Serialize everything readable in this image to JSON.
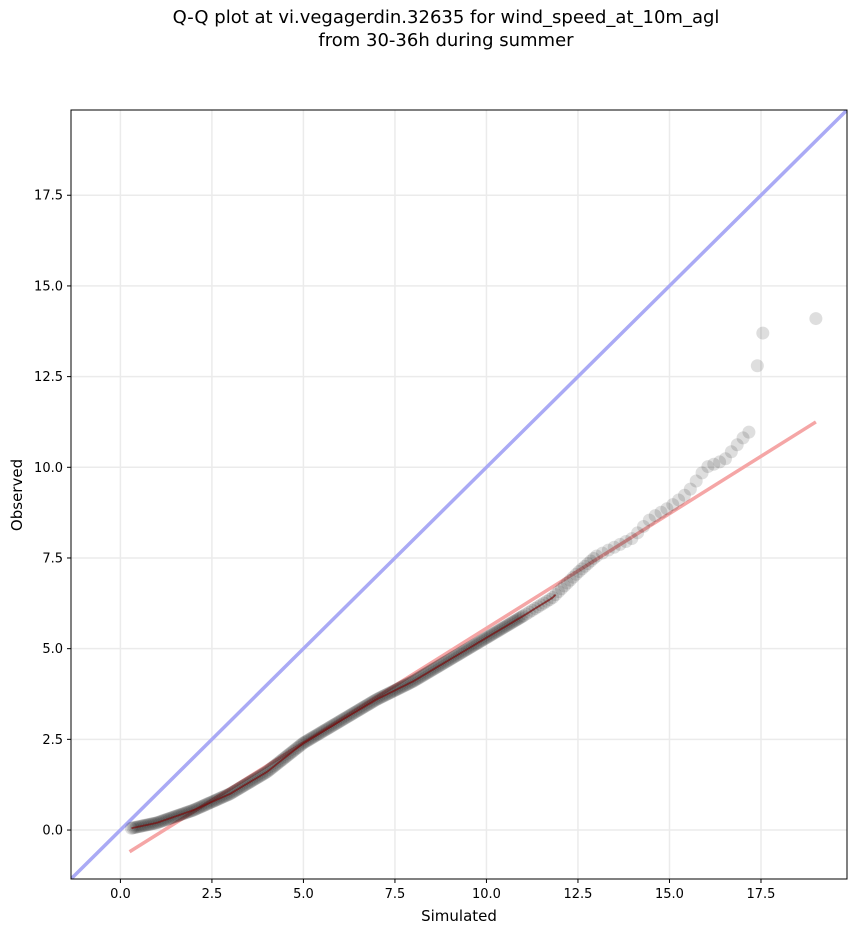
{
  "chart_data": {
    "type": "scatter",
    "title": "Q-Q plot at vi.vegagerdin.32635 for wind_speed_at_10m_agl",
    "subtitle": "from 30-36h during summer",
    "xlabel": "Simulated",
    "ylabel": "Observed",
    "xlim": [
      -1.35,
      19.85
    ],
    "ylim": [
      -1.35,
      19.85
    ],
    "grid": true,
    "x_ticks": [
      "0.0",
      "2.5",
      "5.0",
      "7.5",
      "10.0",
      "12.5",
      "15.0",
      "17.5"
    ],
    "y_ticks": [
      "0.0",
      "2.5",
      "5.0",
      "7.5",
      "10.0",
      "12.5",
      "15.0",
      "17.5"
    ],
    "x_tick_values": [
      0,
      2.5,
      5,
      7.5,
      10,
      12.5,
      15,
      17.5
    ],
    "y_tick_values": [
      0,
      2.5,
      5,
      7.5,
      10,
      12.5,
      15,
      17.5
    ],
    "identity_line": {
      "color": "#aaaaf5",
      "from": [
        -1.35,
        -1.35
      ],
      "to": [
        19.85,
        19.85
      ]
    },
    "fit_line": {
      "color": "#f5a6a6",
      "from": [
        0.25,
        -0.6
      ],
      "to": [
        19.0,
        11.25
      ]
    },
    "curve_line": {
      "color": "#7a0c0c"
    },
    "point_color": "#000000",
    "knots": [
      [
        0.3,
        0.05
      ],
      [
        1.0,
        0.2
      ],
      [
        2.0,
        0.55
      ],
      [
        3.0,
        1.0
      ],
      [
        4.0,
        1.6
      ],
      [
        5.0,
        2.4
      ],
      [
        6.0,
        3.0
      ],
      [
        7.0,
        3.6
      ],
      [
        8.0,
        4.1
      ],
      [
        9.0,
        4.7
      ],
      [
        10.0,
        5.3
      ],
      [
        11.0,
        5.9
      ],
      [
        11.8,
        6.4
      ],
      [
        12.0,
        6.6
      ],
      [
        12.5,
        7.1
      ],
      [
        13.0,
        7.55
      ],
      [
        14.0,
        8.05
      ],
      [
        14.5,
        8.6
      ],
      [
        15.0,
        8.9
      ],
      [
        15.5,
        9.3
      ],
      [
        16.0,
        10.0
      ],
      [
        16.5,
        10.2
      ],
      [
        17.0,
        10.8
      ],
      [
        17.2,
        11.0
      ]
    ],
    "outliers": [
      [
        17.4,
        12.8
      ],
      [
        17.55,
        13.7
      ],
      [
        19.0,
        14.1
      ]
    ]
  }
}
